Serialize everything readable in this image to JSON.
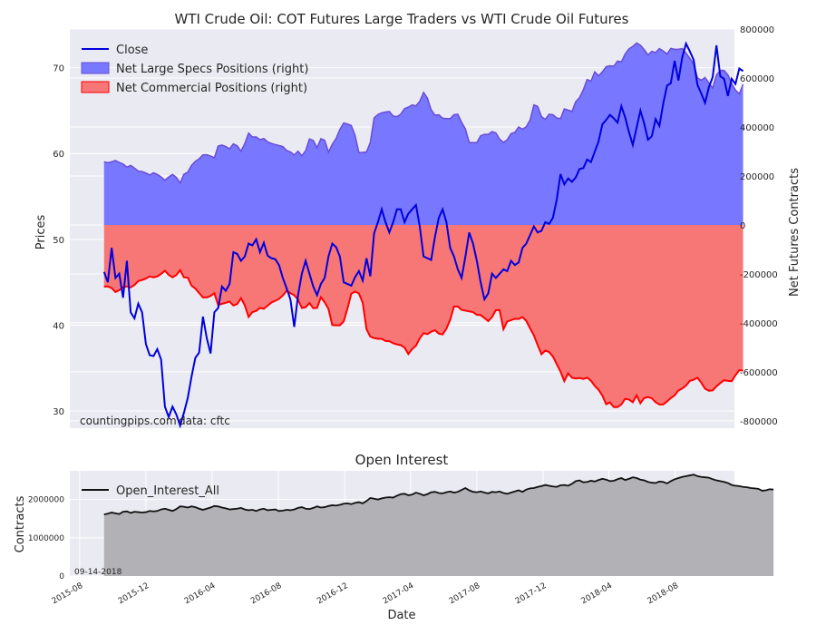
{
  "colors": {
    "panel_bg": "#eaeaf2",
    "grid": "#ffffff",
    "close": "#0000dd",
    "specs_fill": "#7777ff",
    "specs_line": "#6a4bd6",
    "comm_fill": "#f77777",
    "comm_line": "#ff0000",
    "oi_line": "#111111",
    "oi_fill": "#b2b2b6"
  },
  "chart_data": [
    {
      "type": "line",
      "title": "WTI Crude Oil: COT Futures Large Traders vs WTI Crude Oil Futures",
      "ylabel": "Prices",
      "y2label": "Net Futures Contracts",
      "ylim": [
        28,
        74.5
      ],
      "y2lim": [
        -830000,
        800000
      ],
      "yticks": [
        30,
        40,
        50,
        60,
        70
      ],
      "y2ticks": [
        -800000,
        -600000,
        -400000,
        -200000,
        0,
        200000,
        400000,
        600000,
        800000
      ],
      "grid": true,
      "legend_position": "top-left",
      "legend": [
        "Close",
        "Net Large Specs Positions (right)",
        "Net Commercial Positions (right)"
      ],
      "annotations": [
        "countingpips.com",
        "data: cftc"
      ],
      "x_start": "2015-09-15",
      "x_step_days": 7,
      "series": [
        {
          "name": "Close",
          "axis": "left",
          "values": [
            46.2,
            45.0,
            49.0,
            45.5,
            46.0,
            43.2,
            47.5,
            41.5,
            40.8,
            42.5,
            41.5,
            37.8,
            36.5,
            36.4,
            37.2,
            36.0,
            30.5,
            29.3,
            30.5,
            29.6,
            28.3,
            29.8,
            31.5,
            34.0,
            36.2,
            36.8,
            41.0,
            38.5,
            36.7,
            41.5,
            42.0,
            44.5,
            44.0,
            44.8,
            48.5,
            48.3,
            47.5,
            48.0,
            49.5,
            49.3,
            50.0,
            48.5,
            49.6,
            48.1,
            47.8,
            47.7,
            47.0,
            45.5,
            44.3,
            43.0,
            39.8,
            43.5,
            46.0,
            47.5,
            46.0,
            44.5,
            43.5,
            44.8,
            45.5,
            48.0,
            49.5,
            49.1,
            48.0,
            45.0,
            44.8,
            44.6,
            45.6,
            46.3,
            45.2,
            47.8,
            45.7,
            50.7,
            52.0,
            53.5,
            52.0,
            50.8,
            52.0,
            53.5,
            53.5,
            52.0,
            53.0,
            53.5,
            54.0,
            51.5,
            48.0,
            47.8,
            47.6,
            50.3,
            52.5,
            53.5,
            52.0,
            49.0,
            48.0,
            46.5,
            45.5,
            48.0,
            50.8,
            49.5,
            47.5,
            45.0,
            43.0,
            43.7,
            46.0,
            45.5,
            46.0,
            46.5,
            46.3,
            47.5,
            47.0,
            47.3,
            49.0,
            49.5,
            50.5,
            51.5,
            50.8,
            51.0,
            52.0,
            51.8,
            52.5,
            54.6,
            57.6,
            56.4,
            57.1,
            56.7,
            57.2,
            58.2,
            58.3,
            59.3,
            59.0,
            60.2,
            61.4,
            63.4,
            63.9,
            64.5,
            64.1,
            63.6,
            65.5,
            64.2,
            62.5,
            61.0,
            63.0,
            65.0,
            63.5,
            61.6,
            62.0,
            64.0,
            63.2,
            65.8,
            67.9,
            68.2,
            70.8,
            68.5,
            71.2,
            72.8,
            71.9,
            70.9,
            68.0,
            67.0,
            65.9,
            67.7,
            68.9,
            72.6,
            69.0,
            68.7,
            66.7,
            68.7,
            68.1,
            69.9,
            69.6
          ]
        },
        {
          "name": "Net Large Specs Positions (right)",
          "axis": "right",
          "values": [
            258000,
            254000,
            258000,
            263000,
            255000,
            249000,
            236000,
            243000,
            232000,
            220000,
            218000,
            212000,
            204000,
            213000,
            206000,
            196000,
            182000,
            196000,
            206000,
            194000,
            171000,
            207000,
            215000,
            243000,
            260000,
            270000,
            286000,
            287000,
            281000,
            274000,
            322000,
            326000,
            320000,
            311000,
            331000,
            323000,
            301000,
            332000,
            375000,
            359000,
            359000,
            348000,
            353000,
            339000,
            333000,
            328000,
            324000,
            320000,
            304000,
            298000,
            286000,
            301000,
            283000,
            303000,
            351000,
            345000,
            315000,
            352000,
            346000,
            297000,
            329000,
            353000,
            390000,
            416000,
            412000,
            406000,
            365000,
            295000,
            296000,
            298000,
            337000,
            437000,
            451000,
            458000,
            461000,
            463000,
            445000,
            442000,
            452000,
            475000,
            481000,
            490000,
            486000,
            505000,
            541000,
            518000,
            470000,
            448000,
            450000,
            436000,
            434000,
            434000,
            450000,
            452000,
            419000,
            392000,
            337000,
            336000,
            336000,
            364000,
            370000,
            370000,
            381000,
            376000,
            350000,
            337000,
            348000,
            373000,
            378000,
            400000,
            391000,
            401000,
            428000,
            490000,
            484000,
            442000,
            431000,
            452000,
            450000,
            437000,
            434000,
            474000,
            469000,
            463000,
            503000,
            520000,
            552000,
            594000,
            587000,
            625000,
            609000,
            625000,
            646000,
            650000,
            648000,
            669000,
            666000,
            698000,
            719000,
            729000,
            743000,
            734000,
            716000,
            694000,
            709000,
            704000,
            720000,
            710000,
            698000,
            721000,
            717000,
            717000,
            720000,
            702000,
            680000,
            658000,
            601000,
            591000,
            602000,
            580000,
            559000,
            612000,
            631000,
            631000,
            613000,
            577000,
            551000,
            535000,
            575000,
            575000,
            573000,
            541000,
            544000,
            561000,
            547000,
            537000
          ]
        },
        {
          "name": "Net Commercial Positions (right)",
          "axis": "right",
          "values": [
            -252000,
            -251000,
            -258000,
            -274000,
            -266000,
            -254000,
            -251000,
            -255000,
            -245000,
            -229000,
            -225000,
            -219000,
            -210000,
            -214000,
            -210000,
            -200000,
            -187000,
            -204000,
            -214000,
            -205000,
            -185000,
            -214000,
            -215000,
            -248000,
            -260000,
            -278000,
            -296000,
            -296000,
            -290000,
            -279000,
            -327000,
            -322000,
            -318000,
            -313000,
            -329000,
            -323000,
            -299000,
            -328000,
            -376000,
            -356000,
            -351000,
            -339000,
            -342000,
            -330000,
            -317000,
            -310000,
            -302000,
            -288000,
            -269000,
            -279000,
            -287000,
            -305000,
            -339000,
            -336000,
            -319000,
            -340000,
            -339000,
            -295000,
            -316000,
            -343000,
            -409000,
            -410000,
            -410000,
            -394000,
            -341000,
            -281000,
            -272000,
            -280000,
            -318000,
            -426000,
            -456000,
            -462000,
            -465000,
            -465000,
            -474000,
            -475000,
            -483000,
            -488000,
            -491000,
            -501000,
            -527000,
            -507000,
            -493000,
            -463000,
            -442000,
            -446000,
            -436000,
            -430000,
            -444000,
            -447000,
            -424000,
            -387000,
            -333000,
            -333000,
            -347000,
            -350000,
            -353000,
            -356000,
            -367000,
            -368000,
            -380000,
            -393000,
            -376000,
            -348000,
            -348000,
            -426000,
            -394000,
            -389000,
            -383000,
            -384000,
            -376000,
            -392000,
            -422000,
            -451000,
            -491000,
            -528000,
            -513000,
            -519000,
            -537000,
            -568000,
            -599000,
            -638000,
            -606000,
            -624000,
            -627000,
            -625000,
            -629000,
            -624000,
            -636000,
            -657000,
            -673000,
            -697000,
            -732000,
            -725000,
            -744000,
            -744000,
            -733000,
            -710000,
            -713000,
            -724000,
            -696000,
            -728000,
            -707000,
            -703000,
            -708000,
            -724000,
            -733000,
            -733000,
            -721000,
            -707000,
            -696000,
            -676000,
            -668000,
            -656000,
            -637000,
            -632000,
            -624000,
            -644000,
            -669000,
            -677000,
            -676000,
            -659000,
            -646000,
            -634000,
            -637000,
            -638000,
            -614000,
            -593000,
            -595000,
            -606000,
            -587000
          ]
        }
      ]
    },
    {
      "type": "area",
      "title": "Open Interest",
      "xlabel": "Date",
      "ylabel": "Contracts",
      "ylim": [
        0,
        2750000
      ],
      "yticks": [
        0,
        1000000,
        2000000
      ],
      "grid": true,
      "legend_position": "top-left",
      "legend": [
        "Open_Interest_All"
      ],
      "annotations": [
        "09-14-2018"
      ],
      "xticks": [
        "2015-08",
        "2015-12",
        "2016-04",
        "2016-08",
        "2016-12",
        "2017-04",
        "2017-08",
        "2017-12",
        "2018-04",
        "2018-08"
      ],
      "x_start": "2015-09-15",
      "x_step_days": 7,
      "series": [
        {
          "name": "Open_Interest_All",
          "values": [
            1610000,
            1630000,
            1660000,
            1640000,
            1620000,
            1680000,
            1690000,
            1650000,
            1680000,
            1670000,
            1660000,
            1670000,
            1700000,
            1690000,
            1700000,
            1740000,
            1760000,
            1730000,
            1700000,
            1750000,
            1820000,
            1810000,
            1790000,
            1820000,
            1800000,
            1760000,
            1730000,
            1760000,
            1790000,
            1830000,
            1820000,
            1790000,
            1770000,
            1740000,
            1750000,
            1760000,
            1780000,
            1740000,
            1720000,
            1730000,
            1700000,
            1740000,
            1760000,
            1720000,
            1730000,
            1740000,
            1700000,
            1710000,
            1730000,
            1720000,
            1740000,
            1780000,
            1800000,
            1760000,
            1750000,
            1780000,
            1820000,
            1790000,
            1800000,
            1830000,
            1850000,
            1840000,
            1860000,
            1890000,
            1900000,
            1880000,
            1910000,
            1930000,
            1900000,
            1960000,
            2040000,
            2020000,
            2000000,
            2030000,
            2050000,
            2060000,
            2050000,
            2100000,
            2140000,
            2150000,
            2110000,
            2130000,
            2180000,
            2150000,
            2110000,
            2140000,
            2190000,
            2200000,
            2170000,
            2160000,
            2190000,
            2210000,
            2180000,
            2200000,
            2250000,
            2300000,
            2240000,
            2200000,
            2190000,
            2210000,
            2180000,
            2160000,
            2200000,
            2190000,
            2210000,
            2170000,
            2150000,
            2180000,
            2210000,
            2240000,
            2200000,
            2260000,
            2290000,
            2300000,
            2330000,
            2350000,
            2380000,
            2360000,
            2340000,
            2330000,
            2370000,
            2380000,
            2360000,
            2410000,
            2480000,
            2500000,
            2450000,
            2460000,
            2490000,
            2470000,
            2510000,
            2540000,
            2520000,
            2480000,
            2490000,
            2530000,
            2560000,
            2510000,
            2540000,
            2580000,
            2560000,
            2520000,
            2500000,
            2460000,
            2440000,
            2430000,
            2470000,
            2460000,
            2420000,
            2480000,
            2530000,
            2560000,
            2590000,
            2610000,
            2630000,
            2650000,
            2610000,
            2590000,
            2580000,
            2570000,
            2530000,
            2500000,
            2480000,
            2460000,
            2430000,
            2380000,
            2360000,
            2350000,
            2330000,
            2320000,
            2300000,
            2290000,
            2280000,
            2230000,
            2240000,
            2270000,
            2260000
          ]
        }
      ]
    }
  ]
}
